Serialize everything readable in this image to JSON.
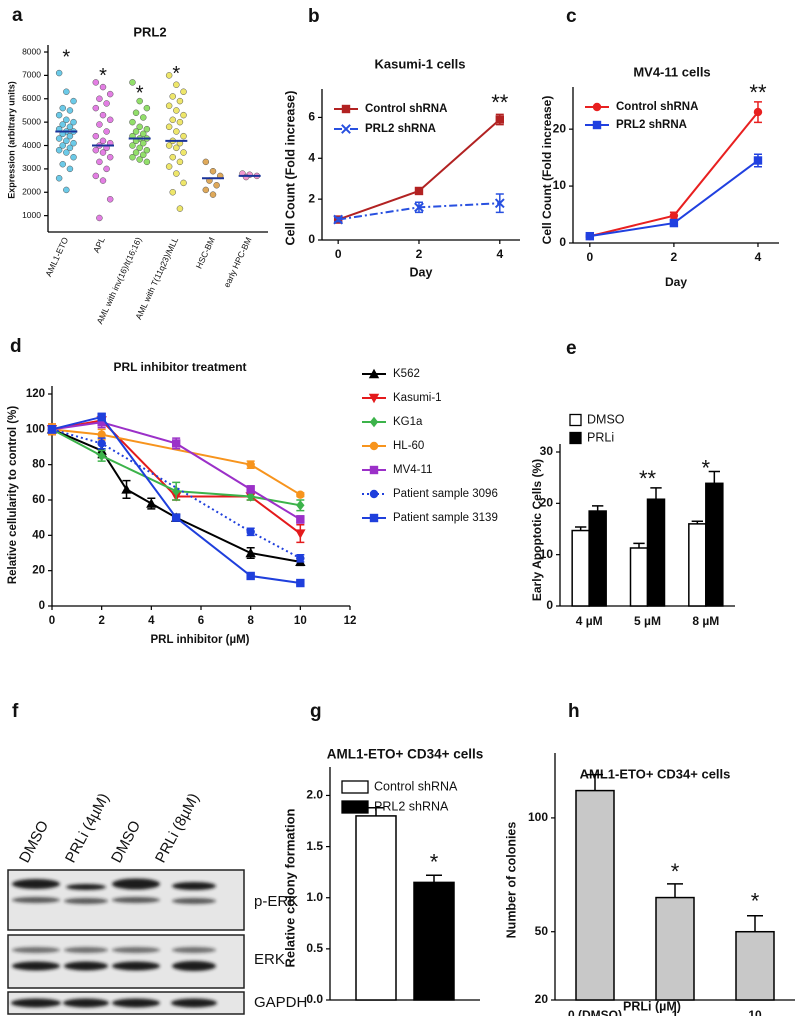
{
  "chart_data": [
    {
      "type": "strip",
      "panel": "a",
      "title": "PRL2",
      "ylabel": "Expression (arbitrary units)",
      "categories": [
        "AML1-ETO",
        "APL",
        "AML with inv(16)/t(16;16)",
        "AML with T(11q23)/MLL",
        "HSC-BM",
        "early HPC-BM"
      ],
      "values": [
        4600,
        4000,
        4300,
        4200,
        2600,
        2700
      ],
      "points": [
        [
          7100,
          6300,
          5900,
          5600,
          5500,
          5300,
          5100,
          5000,
          4900,
          4800,
          4700,
          4600,
          4600,
          4500,
          4400,
          4300,
          4200,
          4100,
          4000,
          3900,
          3800,
          3700,
          3500,
          3200,
          3000,
          2600,
          2100
        ],
        [
          6700,
          6500,
          6200,
          6000,
          5800,
          5600,
          5300,
          5100,
          4900,
          4600,
          4400,
          4200,
          4100,
          4000,
          3900,
          3800,
          3700,
          3500,
          3300,
          3000,
          2700,
          2500,
          1700,
          900
        ],
        [
          6700,
          5900,
          5600,
          5400,
          5200,
          5000,
          4800,
          4700,
          4600,
          4500,
          4400,
          4300,
          4300,
          4200,
          4100,
          4000,
          3900,
          3800,
          3700,
          3600,
          3500,
          3400,
          3300
        ],
        [
          7000,
          6600,
          6300,
          6100,
          5900,
          5700,
          5500,
          5300,
          5100,
          5000,
          4800,
          4600,
          4400,
          4200,
          4100,
          4000,
          3900,
          3700,
          3500,
          3300,
          3100,
          2800,
          2400,
          2000,
          1300
        ],
        [
          3300,
          2900,
          2700,
          2500,
          2300,
          2100,
          1900
        ],
        [
          2800,
          2750,
          2700,
          2650
        ]
      ],
      "colors": [
        "#5bc4e6",
        "#e070e0",
        "#86dc5a",
        "#ece35a",
        "#dba048",
        "#f08cc8"
      ],
      "median_color": "#1a3399",
      "xtick_rotation": -65,
      "ylim": [
        300,
        8300
      ],
      "yticks": [
        1000,
        2000,
        3000,
        4000,
        5000,
        6000,
        7000,
        8000
      ],
      "annotations": [
        {
          "text": "*",
          "category": "AML1-ETO",
          "y": 7950
        },
        {
          "text": "*",
          "category": "APL",
          "y": 7150
        },
        {
          "text": "*",
          "category": "AML with inv(16)/t(16;16)",
          "y": 6400
        },
        {
          "text": "*",
          "category": "AML with T(11q23)/MLL",
          "y": 7250
        }
      ]
    },
    {
      "type": "line",
      "panel": "b",
      "title": "Kasumi-1 cells",
      "xlabel": "Day",
      "ylabel": "Cell Count (Fold increase)",
      "x": [
        0,
        2,
        4
      ],
      "series": [
        {
          "name": "Control shRNA",
          "color": "#b22222",
          "marker": "square",
          "linestyle": "solid",
          "values": [
            1,
            2.4,
            5.9
          ],
          "errors": [
            0.1,
            0.1,
            0.25
          ]
        },
        {
          "name": "PRL2 shRNA",
          "color": "#2850e0",
          "marker": "x",
          "linestyle": "dashdot",
          "values": [
            1,
            1.6,
            1.8
          ],
          "errors": [
            0.1,
            0.25,
            0.45
          ]
        }
      ],
      "xlim": [
        -0.4,
        4.5
      ],
      "xticks": [
        0,
        2,
        4
      ],
      "ylim": [
        0,
        7
      ],
      "yticks": [
        0,
        2,
        4,
        6
      ],
      "legend": "upper left",
      "annotations": [
        {
          "text": "**",
          "x": 4,
          "y": 6.9
        }
      ]
    },
    {
      "type": "line",
      "panel": "c",
      "title": "MV4-11 cells",
      "xlabel": "Day",
      "ylabel": "Cell Count (Fold increase)",
      "x": [
        0,
        2,
        4
      ],
      "series": [
        {
          "name": "Control shRNA",
          "color": "#e82020",
          "marker": "circle",
          "linestyle": "solid",
          "values": [
            1.2,
            4.8,
            23
          ],
          "errors": [
            0.2,
            0.6,
            1.8
          ]
        },
        {
          "name": "PRL2 shRNA",
          "color": "#2040e0",
          "marker": "square",
          "linestyle": "solid",
          "values": [
            1.2,
            3.5,
            14.5
          ],
          "errors": [
            0.2,
            0.4,
            1.1
          ]
        }
      ],
      "xlim": [
        -0.4,
        4.5
      ],
      "xticks": [
        0,
        2,
        4
      ],
      "ylim": [
        0,
        26
      ],
      "yticks": [
        0,
        10,
        20
      ],
      "legend": "upper left",
      "annotations": [
        {
          "text": "**",
          "x": 4,
          "y": 27
        }
      ]
    },
    {
      "type": "line",
      "panel": "d",
      "title": "PRL inhibitor treatment",
      "xlabel": "PRL inhibitor (µM)",
      "ylabel": "Relative cellularity to control (%)",
      "series": [
        {
          "name": "K562",
          "color": "#000000",
          "marker": "triangle",
          "linestyle": "solid",
          "x": [
            0,
            2,
            3,
            4,
            5,
            8,
            10
          ],
          "values": [
            100,
            88,
            66,
            58,
            50,
            30,
            25
          ],
          "errors": [
            2,
            4,
            5,
            3,
            2,
            3,
            2
          ]
        },
        {
          "name": "Kasumi-1",
          "color": "#e41a1c",
          "marker": "triangle-down",
          "linestyle": "solid",
          "x": [
            0,
            2,
            5,
            8,
            10
          ],
          "values": [
            100,
            105,
            62,
            62,
            41
          ],
          "errors": [
            3,
            2,
            2,
            2,
            5
          ]
        },
        {
          "name": "KG1a",
          "color": "#3cb34a",
          "marker": "diamond",
          "linestyle": "solid",
          "x": [
            0,
            2,
            5,
            8,
            10
          ],
          "values": [
            100,
            85,
            65,
            62,
            57
          ],
          "errors": [
            2,
            3,
            5,
            2,
            3
          ]
        },
        {
          "name": "HL-60",
          "color": "#f7941d",
          "marker": "circle",
          "linestyle": "solid",
          "x": [
            0,
            2,
            8,
            10
          ],
          "values": [
            100,
            97,
            80,
            63
          ],
          "errors": [
            3,
            3,
            2,
            1
          ]
        },
        {
          "name": "MV4-11",
          "color": "#9b30c8",
          "marker": "square",
          "linestyle": "solid",
          "x": [
            0,
            2,
            5,
            8,
            10
          ],
          "values": [
            100,
            104,
            92,
            66,
            49
          ],
          "errors": [
            2,
            3,
            3,
            2,
            2
          ]
        },
        {
          "name": "Patient sample 3096",
          "color": "#1f3fdc",
          "marker": "circle",
          "linestyle": "dotted",
          "x": [
            0,
            2,
            8,
            10
          ],
          "values": [
            100,
            92,
            42,
            27
          ],
          "errors": [
            2,
            3,
            2,
            2
          ]
        },
        {
          "name": "Patient sample 3139",
          "color": "#1f3fdc",
          "marker": "square",
          "linestyle": "solid",
          "x": [
            0,
            2,
            5,
            8,
            10
          ],
          "values": [
            100,
            107,
            50,
            17,
            13
          ],
          "errors": [
            2,
            2,
            1,
            1,
            1
          ]
        }
      ],
      "xlim": [
        0,
        12
      ],
      "xticks": [
        0,
        2,
        4,
        6,
        8,
        10,
        12
      ],
      "ylim": [
        0,
        120
      ],
      "yticks": [
        0,
        20,
        40,
        60,
        80,
        100,
        120
      ],
      "legend": "outside right"
    },
    {
      "type": "bar",
      "panel": "e",
      "ylabel": "Early Apoptotic Cells (%)",
      "categories": [
        "4 µM",
        "5 µM",
        "8 µM"
      ],
      "series": [
        {
          "name": "DMSO",
          "color": "#ffffff",
          "values": [
            14.7,
            11.3,
            16
          ],
          "errors": [
            0.7,
            0.9,
            0.5
          ]
        },
        {
          "name": "PRLi",
          "color": "#000000",
          "values": [
            18.5,
            20.8,
            23.9
          ],
          "errors": [
            1.0,
            2.2,
            2.3
          ]
        }
      ],
      "ylim": [
        0,
        30
      ],
      "yticks": [
        0,
        10,
        20,
        30
      ],
      "legend": "above left",
      "annotations": [
        {
          "text": "**",
          "category": "5 µM",
          "y": 25.5
        },
        {
          "text": "*",
          "category": "8 µM",
          "y": 27.5
        }
      ]
    },
    {
      "type": "bar",
      "panel": "g",
      "title": "AML1-ETO+ CD34+ cells",
      "ylabel": "Relative colony formation",
      "series": [
        {
          "name": "Control shRNA",
          "color": "#ffffff",
          "values": [
            1.8
          ],
          "errors": [
            0.08
          ]
        },
        {
          "name": "PRL2 shRNA",
          "color": "#000000",
          "values": [
            1.15
          ],
          "errors": [
            0.07
          ]
        }
      ],
      "ylim": [
        0,
        2.2
      ],
      "yticks": [
        {
          "value": 0,
          "label": "0.0"
        },
        0.5,
        {
          "value": 1,
          "label": "1.0"
        },
        1.5,
        {
          "value": 2,
          "label": "2.0"
        }
      ],
      "legend": "upper left",
      "annotations": [
        {
          "text": "*",
          "series": "PRL2 shRNA",
          "y": 1.38
        }
      ]
    },
    {
      "type": "bar",
      "panel": "h",
      "title": "AML1-ETO+ CD34+ cells",
      "xlabel": "PRLi (µM)",
      "ylabel": "Number of colonies",
      "categories": [
        "0 (DMSO)",
        "1",
        "10"
      ],
      "values": [
        112,
        65,
        50
      ],
      "errors": [
        7,
        6,
        7
      ],
      "color": "#c8c8c8",
      "ylim": [
        20,
        125
      ],
      "yticks": [
        20,
        50,
        100
      ],
      "annotations": [
        {
          "text": "*",
          "category": "1",
          "y": 78
        },
        {
          "text": "*",
          "category": "10",
          "y": 65
        }
      ]
    }
  ],
  "blot": {
    "panel": "f",
    "lanes": [
      "DMSO",
      "PRLi (4µM)",
      "DMSO",
      "PRLi (8µM)"
    ],
    "rows": [
      "p-ERK",
      "ERK",
      "GAPDH"
    ]
  }
}
